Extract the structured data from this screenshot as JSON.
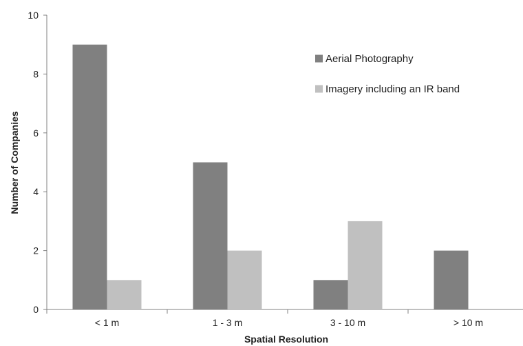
{
  "chart_data": {
    "type": "bar",
    "title": "",
    "xlabel": "Spatial Resolution",
    "ylabel": "Number of Companies",
    "categories": [
      "< 1 m",
      "1 - 3 m",
      "3 - 10 m",
      "> 10 m"
    ],
    "series": [
      {
        "name": "Aerial Photography",
        "values": [
          9,
          5,
          1,
          2
        ],
        "color": "#808080"
      },
      {
        "name": "Imagery including an IR band",
        "values": [
          1,
          2,
          3,
          0
        ],
        "color": "#c0c0c0"
      }
    ],
    "ylim": [
      0,
      10
    ],
    "yticks": [
      "0",
      "2",
      "4",
      "6",
      "8",
      "10"
    ],
    "grid": false,
    "legend_position": "top-right"
  }
}
